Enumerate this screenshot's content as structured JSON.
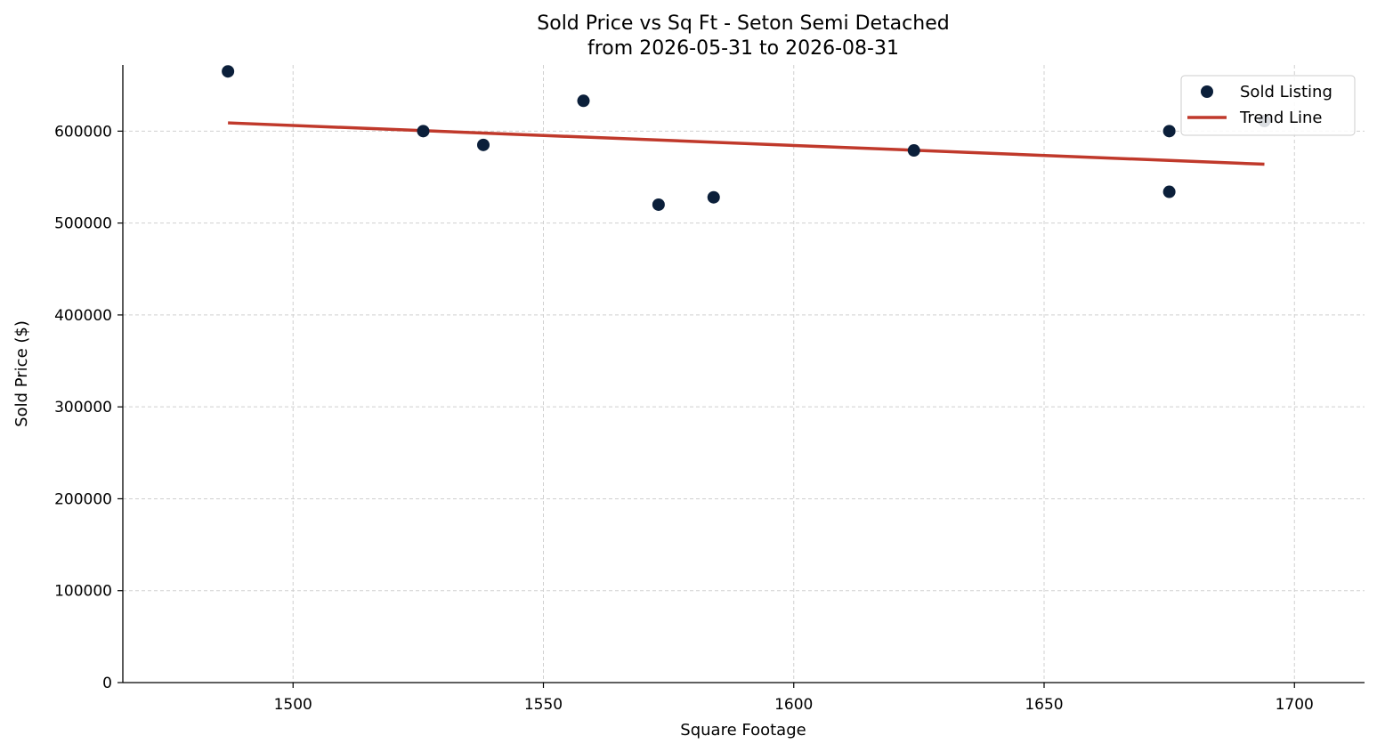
{
  "chart_data": {
    "type": "scatter",
    "title": "Sold Price vs Sq Ft - Seton Semi Detached",
    "subtitle": "from 2026-05-31 to 2026-08-31",
    "xlabel": "Square Footage",
    "ylabel": "Sold Price ($)",
    "xlim": [
      1466,
      1714
    ],
    "ylim": [
      0,
      672000
    ],
    "x_ticks": [
      1500,
      1550,
      1600,
      1650,
      1700
    ],
    "y_ticks": [
      0,
      100000,
      200000,
      300000,
      400000,
      500000,
      600000
    ],
    "x_tick_labels": [
      "1500",
      "1550",
      "1600",
      "1650",
      "1700"
    ],
    "y_tick_labels": [
      "0",
      "100000",
      "200000",
      "300000",
      "400000",
      "500000",
      "600000"
    ],
    "grid": true,
    "legend": {
      "placement": "top-right",
      "entries": [
        "Sold Listing",
        "Trend Line"
      ]
    },
    "series": [
      {
        "name": "Sold Listing",
        "kind": "scatter",
        "color": "#0b1f3a",
        "points": [
          {
            "x": 1487,
            "y": 665000
          },
          {
            "x": 1526,
            "y": 600000
          },
          {
            "x": 1538,
            "y": 585000
          },
          {
            "x": 1558,
            "y": 633000
          },
          {
            "x": 1573,
            "y": 520000
          },
          {
            "x": 1584,
            "y": 528000
          },
          {
            "x": 1624,
            "y": 579000
          },
          {
            "x": 1675,
            "y": 600000
          },
          {
            "x": 1675,
            "y": 534000
          },
          {
            "x": 1694,
            "y": 611000
          }
        ]
      },
      {
        "name": "Trend Line",
        "kind": "line",
        "color": "#c0392b",
        "points": [
          {
            "x": 1487,
            "y": 609000
          },
          {
            "x": 1694,
            "y": 564000
          }
        ]
      }
    ]
  }
}
